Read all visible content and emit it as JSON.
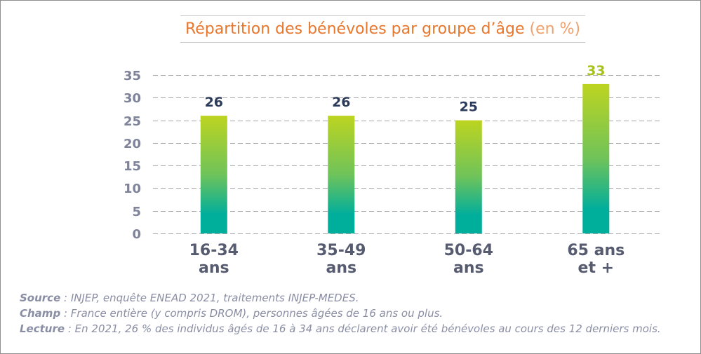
{
  "chart_data": {
    "type": "bar",
    "title": "Répartition des bénévoles par groupe d’âge",
    "title_unit": "(en %)",
    "categories": [
      "16-34 ans",
      "35-49 ans",
      "50-64 ans",
      "65 ans et +"
    ],
    "values": [
      26,
      26,
      25,
      33
    ],
    "xlabel": "",
    "ylabel": "",
    "ylim": [
      0,
      35
    ],
    "yticks": [
      0,
      5,
      10,
      15,
      20,
      25,
      30,
      35
    ],
    "grid": true,
    "legend": "none",
    "value_label_colors": [
      "#2c3b5b",
      "#2c3b5b",
      "#2c3b5b",
      "#a7c21c"
    ],
    "colors": {
      "title": "#e8772e",
      "title_unit": "#f0a06a",
      "bar_top": "#bdd420",
      "bar_mid": "#6fc35a",
      "bar_bottom": "#00ae9c",
      "tick_label": "#7e839a",
      "category_label": "#565b70",
      "grid": "#a6a6a6",
      "notes": "#8a8ea4"
    }
  },
  "notes": [
    {
      "label": "Source",
      "text": ": INJEP, enquête ENEAD 2021, traitements INJEP-MEDES."
    },
    {
      "label": "Champ",
      "text": ": France entière (y compris DROM), personnes âgées de 16 ans ou plus."
    },
    {
      "label": "Lecture",
      "text": ": En 2021, 26 % des individus âgés de 16 à 34 ans déclarent avoir été bénévoles au cours des 12 derniers mois."
    }
  ]
}
